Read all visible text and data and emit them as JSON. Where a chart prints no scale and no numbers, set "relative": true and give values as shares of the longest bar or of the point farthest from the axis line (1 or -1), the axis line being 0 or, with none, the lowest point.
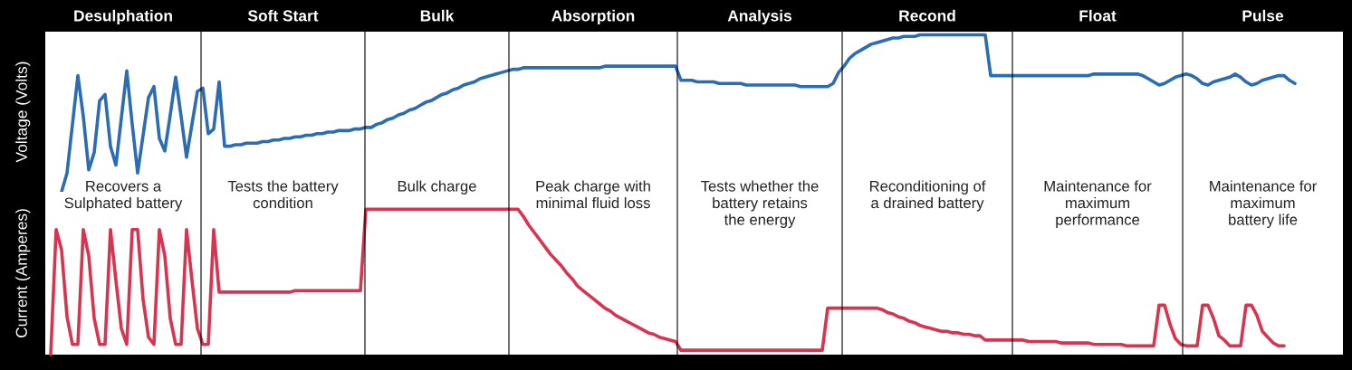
{
  "chart_data": [
    {
      "type": "line",
      "relative": true,
      "ylabel": "Voltage (Volts)",
      "categories": [
        null,
        null,
        null,
        null,
        null,
        null,
        null,
        null,
        null,
        null,
        null,
        null,
        null,
        null,
        null,
        null,
        null,
        null,
        null,
        null,
        null,
        null,
        null,
        null,
        null,
        null,
        null,
        null,
        null,
        null,
        null,
        null,
        null,
        null,
        null,
        null,
        null,
        null,
        null,
        null,
        null,
        null,
        null,
        null,
        null,
        null,
        null,
        null,
        null,
        null,
        null,
        null,
        null,
        null,
        null,
        null,
        null,
        null,
        null,
        null,
        null,
        null,
        null,
        null,
        null,
        null,
        null,
        null,
        null,
        null,
        null,
        null,
        null,
        null,
        null,
        null,
        null,
        null,
        null,
        null,
        null,
        null,
        null,
        null,
        null,
        null,
        null,
        null,
        null,
        null,
        null,
        null,
        null,
        null,
        null,
        null,
        null,
        null,
        null,
        null,
        null,
        null,
        null,
        null,
        null,
        null,
        null,
        null,
        null,
        null,
        null,
        null,
        null,
        null,
        null,
        null,
        null,
        null,
        null,
        null,
        null,
        null,
        null,
        null,
        null,
        null,
        null,
        null,
        null,
        null,
        null,
        null,
        null,
        null,
        null,
        null,
        null,
        null,
        null,
        null,
        null,
        null,
        null,
        null,
        null,
        null,
        null,
        null,
        null,
        null,
        null,
        null,
        null,
        null,
        null,
        null,
        null,
        null,
        null,
        null,
        null,
        null,
        null,
        null,
        null,
        null,
        null,
        null,
        null,
        null,
        null,
        null,
        null,
        null,
        null,
        null,
        null,
        null,
        null,
        null,
        null,
        null,
        null,
        null,
        null,
        null,
        null,
        null,
        null,
        null,
        null,
        null,
        null,
        null,
        null,
        null,
        null,
        null,
        null,
        null,
        null,
        null,
        null,
        null,
        null,
        null,
        null,
        null,
        null,
        null,
        null,
        null,
        null,
        null,
        null,
        null,
        null,
        null,
        null,
        null,
        null,
        null,
        null,
        null,
        null,
        null,
        null,
        null
      ],
      "series": [
        {
          "color": "#2a6db5",
          "values": [
            0.0,
            0.12,
            0.43,
            0.74,
            0.48,
            0.14,
            0.25,
            0.58,
            0.62,
            0.29,
            0.17,
            0.47,
            0.77,
            0.43,
            0.12,
            0.36,
            0.6,
            0.67,
            0.34,
            0.26,
            0.49,
            0.73,
            0.48,
            0.22,
            0.43,
            0.64,
            0.66,
            0.37,
            0.4,
            0.7,
            0.29,
            0.29,
            0.3,
            0.3,
            0.31,
            0.31,
            0.31,
            0.32,
            0.32,
            0.33,
            0.33,
            0.34,
            0.34,
            0.35,
            0.35,
            0.36,
            0.36,
            0.37,
            0.37,
            0.38,
            0.38,
            0.39,
            0.39,
            0.39,
            0.4,
            0.4,
            0.41,
            0.41,
            0.43,
            0.44,
            0.46,
            0.47,
            0.49,
            0.5,
            0.52,
            0.53,
            0.55,
            0.57,
            0.58,
            0.6,
            0.62,
            0.63,
            0.65,
            0.66,
            0.68,
            0.69,
            0.7,
            0.72,
            0.73,
            0.74,
            0.75,
            0.76,
            0.77,
            0.78,
            0.78,
            0.79,
            0.79,
            0.79,
            0.79,
            0.79,
            0.79,
            0.79,
            0.79,
            0.79,
            0.79,
            0.79,
            0.79,
            0.79,
            0.79,
            0.79,
            0.8,
            0.8,
            0.8,
            0.8,
            0.8,
            0.8,
            0.8,
            0.8,
            0.8,
            0.8,
            0.8,
            0.8,
            0.8,
            0.8,
            0.71,
            0.71,
            0.71,
            0.7,
            0.7,
            0.7,
            0.7,
            0.69,
            0.69,
            0.69,
            0.69,
            0.69,
            0.68,
            0.68,
            0.68,
            0.68,
            0.68,
            0.68,
            0.68,
            0.68,
            0.68,
            0.68,
            0.67,
            0.67,
            0.67,
            0.67,
            0.67,
            0.67,
            0.69,
            0.76,
            0.8,
            0.85,
            0.88,
            0.9,
            0.92,
            0.94,
            0.95,
            0.96,
            0.97,
            0.98,
            0.98,
            0.99,
            0.99,
            0.99,
            1.0,
            1.0,
            1.0,
            1.0,
            1.0,
            1.0,
            1.0,
            1.0,
            1.0,
            1.0,
            1.0,
            1.0,
            1.0,
            0.74,
            0.74,
            0.74,
            0.74,
            0.74,
            0.74,
            0.74,
            0.74,
            0.74,
            0.74,
            0.74,
            0.74,
            0.74,
            0.74,
            0.74,
            0.74,
            0.74,
            0.74,
            0.74,
            0.75,
            0.75,
            0.75,
            0.75,
            0.75,
            0.75,
            0.75,
            0.75,
            0.75,
            0.74,
            0.72,
            0.7,
            0.68,
            0.69,
            0.71,
            0.73,
            0.74,
            0.75,
            0.74,
            0.72,
            0.69,
            0.68,
            0.7,
            0.71,
            0.72,
            0.73,
            0.75,
            0.73,
            0.7,
            0.68,
            0.69,
            0.71,
            0.72,
            0.73,
            0.74,
            0.74,
            0.71,
            0.69
          ]
        }
      ],
      "annotations": [
        "Desulphation",
        "Soft Start",
        "Bulk",
        "Absorption",
        "Analysis",
        "Recond",
        "Float",
        "Pulse"
      ]
    },
    {
      "type": "line",
      "relative": true,
      "ylabel": "Current (Amperes)",
      "categories": [
        null,
        null,
        null,
        null,
        null,
        null,
        null,
        null,
        null,
        null,
        null,
        null,
        null,
        null,
        null,
        null,
        null,
        null,
        null,
        null,
        null,
        null,
        null,
        null,
        null,
        null,
        null,
        null,
        null,
        null,
        null,
        null,
        null,
        null,
        null,
        null,
        null,
        null,
        null,
        null,
        null,
        null,
        null,
        null,
        null,
        null,
        null,
        null,
        null,
        null,
        null,
        null,
        null,
        null,
        null,
        null,
        null,
        null,
        null,
        null,
        null,
        null,
        null,
        null,
        null,
        null,
        null,
        null,
        null,
        null,
        null,
        null,
        null,
        null,
        null,
        null,
        null,
        null,
        null,
        null,
        null,
        null,
        null,
        null,
        null,
        null,
        null,
        null,
        null,
        null,
        null,
        null,
        null,
        null,
        null,
        null,
        null,
        null,
        null,
        null,
        null,
        null,
        null,
        null,
        null,
        null,
        null,
        null,
        null,
        null,
        null,
        null,
        null,
        null,
        null,
        null,
        null,
        null,
        null,
        null,
        null,
        null,
        null,
        null,
        null,
        null,
        null,
        null,
        null,
        null,
        null,
        null,
        null,
        null,
        null,
        null,
        null,
        null,
        null,
        null,
        null,
        null,
        null,
        null,
        null,
        null,
        null,
        null,
        null,
        null,
        null,
        null,
        null,
        null,
        null,
        null,
        null,
        null,
        null,
        null,
        null,
        null,
        null,
        null,
        null,
        null,
        null,
        null,
        null,
        null,
        null,
        null,
        null,
        null,
        null,
        null,
        null,
        null,
        null,
        null,
        null,
        null,
        null,
        null,
        null,
        null,
        null,
        null,
        null,
        null,
        null,
        null,
        null,
        null,
        null,
        null,
        null,
        null,
        null,
        null,
        null,
        null,
        null,
        null,
        null,
        null,
        null,
        null,
        null,
        null,
        null,
        null,
        null,
        null,
        null,
        null,
        null,
        null,
        null,
        null,
        null,
        null,
        null,
        null,
        null,
        null,
        null,
        null
      ],
      "series": [
        {
          "color": "#d8344f",
          "values": [
            0.0,
            0.86,
            0.72,
            0.26,
            0.07,
            0.07,
            0.86,
            0.68,
            0.25,
            0.07,
            0.07,
            0.86,
            0.51,
            0.18,
            0.07,
            0.86,
            0.86,
            0.38,
            0.12,
            0.07,
            0.86,
            0.68,
            0.25,
            0.07,
            0.07,
            0.86,
            0.51,
            0.18,
            0.07,
            0.07,
            0.86,
            0.43,
            0.43,
            0.43,
            0.43,
            0.43,
            0.43,
            0.43,
            0.43,
            0.43,
            0.43,
            0.43,
            0.43,
            0.43,
            0.43,
            0.44,
            0.44,
            0.44,
            0.44,
            0.44,
            0.44,
            0.44,
            0.44,
            0.44,
            0.44,
            0.44,
            0.44,
            0.44,
            1.0,
            1.0,
            1.0,
            1.0,
            1.0,
            1.0,
            1.0,
            1.0,
            1.0,
            1.0,
            1.0,
            1.0,
            1.0,
            1.0,
            1.0,
            1.0,
            1.0,
            1.0,
            1.0,
            1.0,
            1.0,
            1.0,
            1.0,
            1.0,
            1.0,
            1.0,
            1.0,
            1.0,
            1.0,
            0.95,
            0.89,
            0.84,
            0.79,
            0.74,
            0.69,
            0.65,
            0.61,
            0.56,
            0.52,
            0.47,
            0.44,
            0.41,
            0.38,
            0.35,
            0.32,
            0.3,
            0.27,
            0.25,
            0.23,
            0.21,
            0.19,
            0.17,
            0.15,
            0.14,
            0.12,
            0.11,
            0.1,
            0.09,
            0.03,
            0.03,
            0.03,
            0.03,
            0.03,
            0.03,
            0.03,
            0.03,
            0.03,
            0.03,
            0.03,
            0.03,
            0.03,
            0.03,
            0.03,
            0.03,
            0.03,
            0.03,
            0.03,
            0.03,
            0.03,
            0.03,
            0.03,
            0.03,
            0.03,
            0.03,
            0.03,
            0.32,
            0.32,
            0.32,
            0.32,
            0.32,
            0.32,
            0.32,
            0.32,
            0.32,
            0.32,
            0.31,
            0.29,
            0.28,
            0.26,
            0.25,
            0.23,
            0.22,
            0.2,
            0.19,
            0.18,
            0.17,
            0.16,
            0.16,
            0.15,
            0.15,
            0.14,
            0.14,
            0.13,
            0.13,
            0.1,
            0.1,
            0.1,
            0.1,
            0.1,
            0.1,
            0.1,
            0.1,
            0.09,
            0.09,
            0.09,
            0.09,
            0.09,
            0.09,
            0.08,
            0.08,
            0.08,
            0.08,
            0.08,
            0.08,
            0.07,
            0.07,
            0.07,
            0.07,
            0.07,
            0.07,
            0.06,
            0.06,
            0.06,
            0.06,
            0.06,
            0.06,
            0.34,
            0.34,
            0.21,
            0.11,
            0.07,
            0.06,
            0.06,
            0.06,
            0.34,
            0.34,
            0.25,
            0.13,
            0.1,
            0.06,
            0.06,
            0.06,
            0.34,
            0.34,
            0.27,
            0.16,
            0.12,
            0.08,
            0.06,
            0.06
          ]
        }
      ],
      "annotations": [
        "Recovers a\nSulphated battery",
        "Tests the battery\ncondition",
        "Bulk charge",
        "Peak charge with\nminimal fluid loss",
        "Tests whether the\nbattery retains\nthe energy",
        "Reconditioning of\na drained battery",
        "Maintenance for\nmaximum\nperformance",
        "Maintenance for\nmaximum\nbattery life"
      ]
    }
  ]
}
